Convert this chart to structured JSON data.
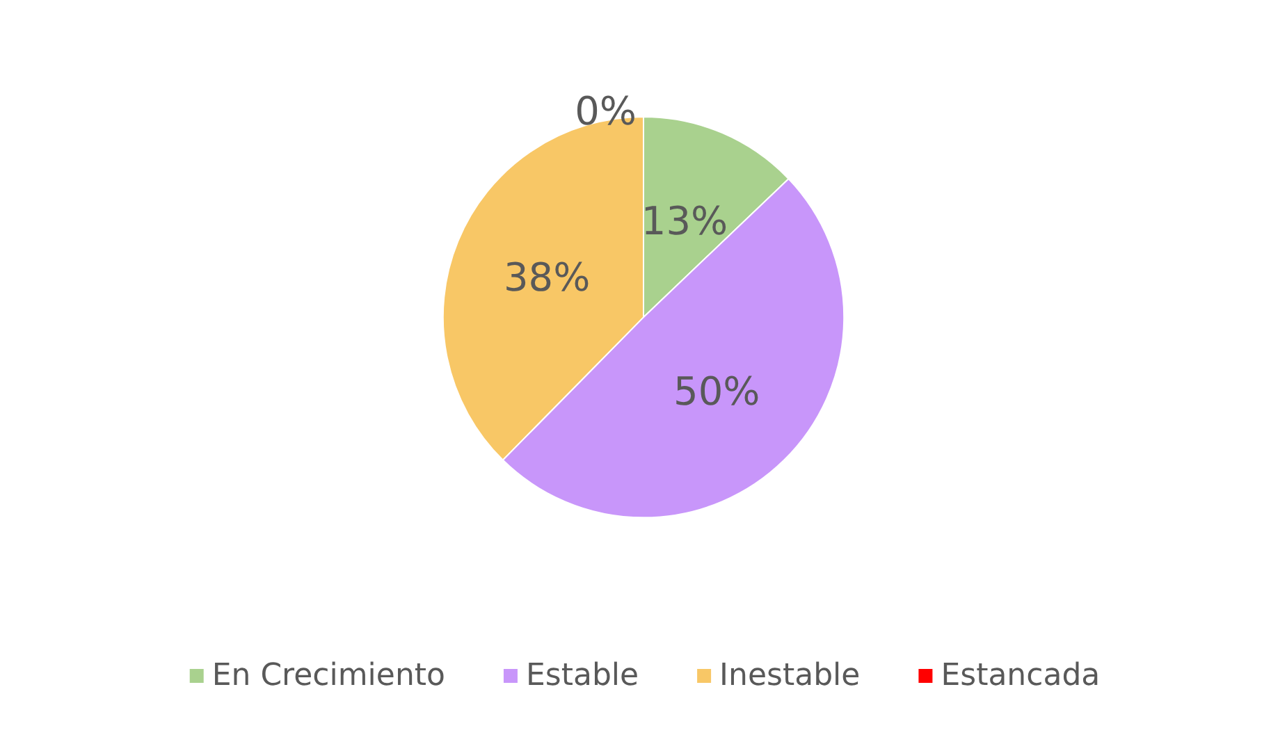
{
  "chart_data": {
    "type": "pie",
    "categories": [
      "En Crecimiento",
      "Estable",
      "Inestable",
      "Estancada"
    ],
    "values": [
      13,
      50,
      38,
      0
    ],
    "colors": [
      "#a9d18e",
      "#c896fa",
      "#f8c766",
      "#ff0000"
    ],
    "value_labels": [
      "13%",
      "50%",
      "38%",
      "0%"
    ],
    "legend": "bottom"
  }
}
